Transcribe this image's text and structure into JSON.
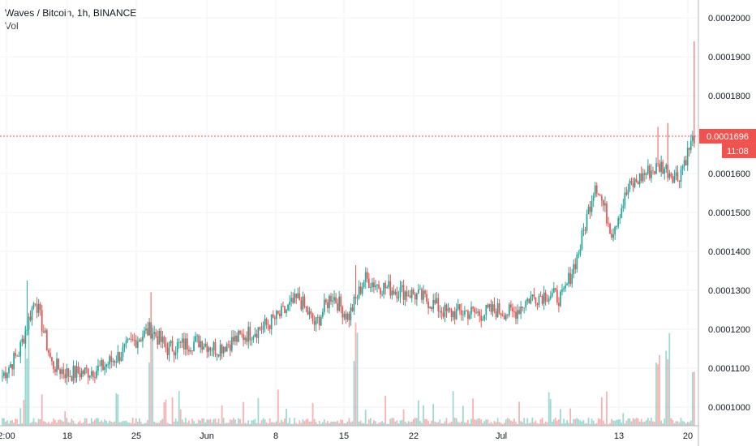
{
  "header": {
    "symbol_line": "Waves / Bitcoin, 1h, BINANCE",
    "indicator": "Vol"
  },
  "price_badge": {
    "value": "0.0001696",
    "countdown": "11:08"
  },
  "colors": {
    "up": "#26a69a",
    "down": "#ef5350",
    "grid": "#f0f3fa",
    "axis": "#b2b5be",
    "price_line": "#ef5350"
  },
  "chart_data": {
    "type": "candlestick",
    "ylim": [
      9.52e-05,
      0.0002046
    ],
    "y_ticks": [
      "0.0001000",
      "0.0001100",
      "0.0001200",
      "0.0001300",
      "0.0001400",
      "0.0001500",
      "0.0001600",
      "0.0001700",
      "0.0001800",
      "0.0001900",
      "0.0002000"
    ],
    "x_ticks": [
      "2:00",
      "18",
      "25",
      "Jun",
      "8",
      "15",
      "22",
      "Jul",
      "13",
      "20"
    ],
    "current_price": 0.0001696,
    "close_path": [
      [
        "2:00",
        0.000108
      ],
      [
        "2:00+",
        0.000114
      ],
      [
        "12",
        0.000128
      ],
      [
        "13",
        0.000111
      ],
      [
        "14",
        0.0001085
      ],
      [
        "18",
        0.000109
      ],
      [
        "20",
        0.00011
      ],
      [
        "22",
        0.000113
      ],
      [
        "25",
        0.000117
      ],
      [
        "26",
        0.00012
      ],
      [
        "27",
        0.000115
      ],
      [
        "29",
        0.000116
      ],
      [
        "Jun",
        0.000117
      ],
      [
        "2",
        0.000115
      ],
      [
        "4",
        0.000117
      ],
      [
        "6",
        0.000119
      ],
      [
        "8",
        0.000121
      ],
      [
        "10",
        0.000124
      ],
      [
        "11",
        0.000128
      ],
      [
        "12",
        0.000121
      ],
      [
        "14",
        0.000129
      ],
      [
        "15",
        0.000123
      ],
      [
        "16",
        0.000133
      ],
      [
        "17",
        0.000131
      ],
      [
        "19",
        0.00013
      ],
      [
        "22",
        0.000129
      ],
      [
        "25",
        0.000127
      ],
      [
        "27",
        0.000124
      ],
      [
        "Jul",
        0.0001245
      ],
      [
        "3",
        0.000124
      ],
      [
        "5",
        0.000125
      ],
      [
        "7",
        0.000124
      ],
      [
        "9",
        0.000128
      ],
      [
        "11",
        0.000129
      ],
      [
        "12",
        0.000128
      ],
      [
        "13",
        0.00014
      ],
      [
        "14",
        0.000158
      ],
      [
        "15",
        0.000145
      ],
      [
        "16",
        0.000156
      ],
      [
        "17",
        0.00016
      ],
      [
        "18",
        0.000162
      ],
      [
        "19",
        0.000159
      ],
      [
        "20",
        0.0001696
      ]
    ],
    "highlights": [
      {
        "x": "~14",
        "high": 0.0001325
      },
      {
        "x": "~26",
        "high": 0.0001295
      },
      {
        "x": "~15 Jun",
        "high": 0.0001365
      },
      {
        "x": "~16 Jul",
        "high": 0.000172
      },
      {
        "x": "~18 Jul",
        "high": 0.000173
      },
      {
        "x": "~20 Jul",
        "high": 0.000194
      }
    ]
  }
}
